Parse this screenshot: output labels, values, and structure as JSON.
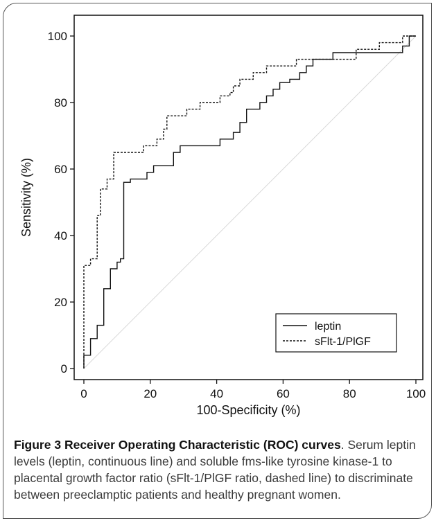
{
  "figure": {
    "number": "Figure 3",
    "title": "Receiver Operating Characteristic (ROC) curves",
    "caption_text": ". Serum leptin levels (leptin, continuous line) and soluble fms-like tyrosine kinase-1 to placental growth factor ratio (sFlt-1/PlGF ratio, dashed line) to discriminate between preeclamptic patients and healthy pregnant women."
  },
  "chart_data": {
    "type": "line",
    "title": "",
    "xlabel": "100-Specificity (%)",
    "ylabel": "Sensitivity (%)",
    "xlim": [
      0,
      100
    ],
    "ylim": [
      0,
      100
    ],
    "xticks": [
      0,
      20,
      40,
      60,
      80,
      100
    ],
    "yticks": [
      0,
      20,
      40,
      60,
      80,
      100
    ],
    "grid": false,
    "legend_position": "bottom-right",
    "reference_line": {
      "from": [
        0,
        0
      ],
      "to": [
        100,
        100
      ],
      "color": "#d8d8d8"
    },
    "series": [
      {
        "name": "leptin",
        "style": "solid",
        "color": "#111111",
        "points": [
          [
            0,
            0
          ],
          [
            0,
            4
          ],
          [
            2,
            4
          ],
          [
            2,
            9
          ],
          [
            4,
            9
          ],
          [
            4,
            13
          ],
          [
            6,
            13
          ],
          [
            6,
            24
          ],
          [
            8,
            24
          ],
          [
            8,
            30
          ],
          [
            10,
            30
          ],
          [
            10,
            32
          ],
          [
            11,
            32
          ],
          [
            11,
            33
          ],
          [
            12,
            33
          ],
          [
            12,
            56
          ],
          [
            14,
            56
          ],
          [
            14,
            57
          ],
          [
            19,
            57
          ],
          [
            19,
            59
          ],
          [
            21,
            59
          ],
          [
            21,
            61
          ],
          [
            27,
            61
          ],
          [
            27,
            65
          ],
          [
            29,
            65
          ],
          [
            29,
            67
          ],
          [
            41,
            67
          ],
          [
            41,
            69
          ],
          [
            45,
            69
          ],
          [
            45,
            71
          ],
          [
            47,
            71
          ],
          [
            47,
            74
          ],
          [
            49,
            74
          ],
          [
            49,
            78
          ],
          [
            53,
            78
          ],
          [
            53,
            80
          ],
          [
            55,
            80
          ],
          [
            55,
            82
          ],
          [
            57,
            82
          ],
          [
            57,
            84
          ],
          [
            59,
            84
          ],
          [
            59,
            86
          ],
          [
            62,
            86
          ],
          [
            62,
            87
          ],
          [
            65,
            87
          ],
          [
            65,
            89
          ],
          [
            67,
            89
          ],
          [
            67,
            91
          ],
          [
            69,
            91
          ],
          [
            69,
            93
          ],
          [
            75,
            93
          ],
          [
            75,
            95
          ],
          [
            96,
            95
          ],
          [
            96,
            97
          ],
          [
            98,
            97
          ],
          [
            98,
            100
          ],
          [
            100,
            100
          ]
        ]
      },
      {
        "name": "sFlt-1/PlGF",
        "style": "dashed",
        "color": "#111111",
        "points": [
          [
            0,
            0
          ],
          [
            0,
            31
          ],
          [
            2,
            31
          ],
          [
            2,
            33
          ],
          [
            4,
            33
          ],
          [
            4,
            46
          ],
          [
            5,
            46
          ],
          [
            5,
            54
          ],
          [
            7,
            54
          ],
          [
            7,
            57
          ],
          [
            9,
            57
          ],
          [
            9,
            65
          ],
          [
            18,
            65
          ],
          [
            18,
            67
          ],
          [
            22,
            67
          ],
          [
            22,
            69
          ],
          [
            24,
            69
          ],
          [
            24,
            72
          ],
          [
            25,
            72
          ],
          [
            25,
            76
          ],
          [
            31,
            76
          ],
          [
            31,
            78
          ],
          [
            35,
            78
          ],
          [
            35,
            80
          ],
          [
            41,
            80
          ],
          [
            41,
            82
          ],
          [
            44,
            82
          ],
          [
            44,
            83
          ],
          [
            45,
            83
          ],
          [
            45,
            85
          ],
          [
            47,
            85
          ],
          [
            47,
            87
          ],
          [
            51,
            87
          ],
          [
            51,
            89
          ],
          [
            55,
            89
          ],
          [
            55,
            91
          ],
          [
            64,
            91
          ],
          [
            64,
            93
          ],
          [
            82,
            93
          ],
          [
            82,
            96
          ],
          [
            89,
            96
          ],
          [
            89,
            98
          ],
          [
            96,
            98
          ],
          [
            96,
            100
          ],
          [
            100,
            100
          ]
        ]
      }
    ]
  }
}
